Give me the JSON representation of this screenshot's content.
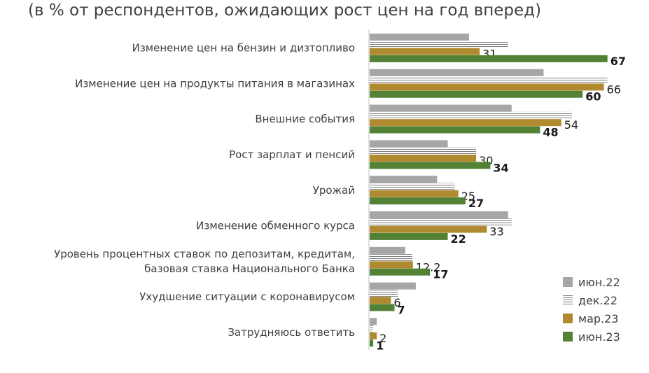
{
  "chart_data": {
    "type": "bar",
    "orientation": "horizontal",
    "title": "(в % от респондентов, ожидающих рост цен на год вперед)",
    "categories": [
      "Изменение цен на бензин и дизтопливо",
      "Изменение цен на продукты питания в магазинах",
      "Внешние события",
      "Рост зарплат и пенсий",
      "Урожай",
      "Изменение обменного курса",
      "Уровень процентных ставок по депозитам, кредитам,\nбазовая ставка Национального Банка",
      "Ухудшение ситуации с коронавирусом",
      "Затрудняюсь ответить"
    ],
    "series": [
      {
        "name": "июн.22",
        "color": "#a6a6a6",
        "pattern": "solid",
        "values": [
          28,
          49,
          40,
          22,
          19,
          39,
          10,
          13,
          2
        ]
      },
      {
        "name": "дек.22",
        "color": "#7f7f7f",
        "pattern": "lines",
        "values": [
          39,
          67,
          57,
          30,
          24,
          40,
          12,
          8,
          1
        ]
      },
      {
        "name": "мар.23",
        "color": "#b08a2e",
        "pattern": "solid",
        "values": [
          31,
          66,
          54,
          30,
          25,
          33,
          12.2,
          6,
          2
        ]
      },
      {
        "name": "июн.23",
        "color": "#538135",
        "pattern": "solid",
        "values": [
          67,
          60,
          48,
          34,
          27,
          22,
          17,
          7,
          1
        ]
      }
    ],
    "data_labels": {
      "мар.23": [
        "31",
        "66",
        "54",
        "30",
        "25",
        "33",
        "12.2",
        "6",
        "2"
      ],
      "июн.23": [
        "67",
        "60",
        "48",
        "34",
        "27",
        "22",
        "17",
        "7",
        "1"
      ]
    },
    "xlim": [
      0,
      70
    ],
    "legend_position": "bottom-right",
    "grid": false
  }
}
